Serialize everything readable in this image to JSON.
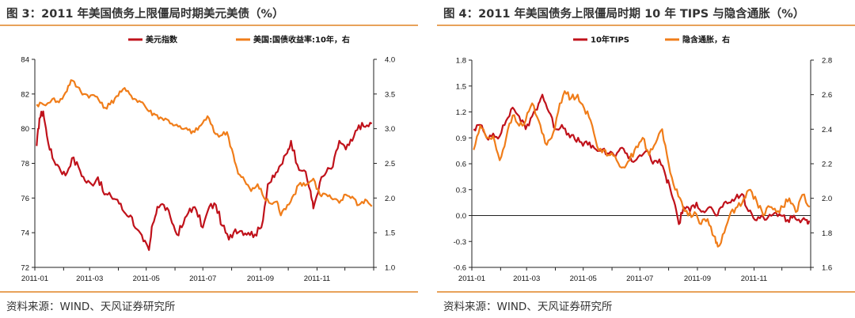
{
  "panels": [
    {
      "title": "图 3：2011 年美国债务上限僵局时期美元美债（%）",
      "source": "资料来源：WIND、天风证券研究所"
    },
    {
      "title": "图 4：2011 年美国债务上限僵局时期 10 年 TIPS 与隐含通胀（%）",
      "source": "资料来源：WIND、天风证券研究所"
    }
  ],
  "chart_data": [
    {
      "type": "line",
      "x_ticks": [
        "2011-01",
        "2011-03",
        "2011-05",
        "2011-07",
        "2011-09",
        "2011-11"
      ],
      "y_left": {
        "range": [
          72,
          84
        ],
        "ticks": [
          "72",
          "74",
          "76",
          "78",
          "80",
          "82",
          "84"
        ]
      },
      "y_right": {
        "range": [
          1.0,
          4.0
        ],
        "ticks": [
          "1.0",
          "1.5",
          "2.0",
          "2.5",
          "3.0",
          "3.5",
          "4.0"
        ]
      },
      "grid": false,
      "legend_position": "top",
      "colors": {
        "series1": "#c0121b",
        "series2": "#f07d1a"
      },
      "series": [
        {
          "name": "美元指数",
          "axis": "left",
          "points": [
            [
              "2011-01-03",
              79.0
            ],
            [
              "2011-01-06",
              80.6
            ],
            [
              "2011-01-10",
              81.0
            ],
            [
              "2011-01-14",
              79.6
            ],
            [
              "2011-01-20",
              78.3
            ],
            [
              "2011-01-27",
              77.8
            ],
            [
              "2011-02-03",
              77.3
            ],
            [
              "2011-02-10",
              78.3
            ],
            [
              "2011-02-17",
              77.8
            ],
            [
              "2011-02-24",
              77.0
            ],
            [
              "2011-03-03",
              76.8
            ],
            [
              "2011-03-10",
              77.2
            ],
            [
              "2011-03-17",
              76.2
            ],
            [
              "2011-03-24",
              76.1
            ],
            [
              "2011-03-31",
              75.9
            ],
            [
              "2011-04-07",
              75.2
            ],
            [
              "2011-04-14",
              75.0
            ],
            [
              "2011-04-21",
              74.2
            ],
            [
              "2011-04-28",
              73.5
            ],
            [
              "2011-05-04",
              73.0
            ],
            [
              "2011-05-08",
              74.5
            ],
            [
              "2011-05-13",
              75.5
            ],
            [
              "2011-05-20",
              75.6
            ],
            [
              "2011-05-27",
              74.9
            ],
            [
              "2011-06-03",
              73.9
            ],
            [
              "2011-06-10",
              74.5
            ],
            [
              "2011-06-17",
              75.4
            ],
            [
              "2011-06-24",
              75.3
            ],
            [
              "2011-07-01",
              74.3
            ],
            [
              "2011-07-08",
              75.5
            ],
            [
              "2011-07-15",
              75.6
            ],
            [
              "2011-07-22",
              74.4
            ],
            [
              "2011-07-29",
              73.6
            ],
            [
              "2011-08-05",
              74.2
            ],
            [
              "2011-08-12",
              74.1
            ],
            [
              "2011-08-19",
              74.0
            ],
            [
              "2011-08-26",
              73.9
            ],
            [
              "2011-09-02",
              74.3
            ],
            [
              "2011-09-09",
              76.8
            ],
            [
              "2011-09-16",
              77.2
            ],
            [
              "2011-09-23",
              77.9
            ],
            [
              "2011-09-30",
              78.6
            ],
            [
              "2011-10-04",
              79.3
            ],
            [
              "2011-10-11",
              77.9
            ],
            [
              "2011-10-18",
              77.6
            ],
            [
              "2011-10-25",
              76.4
            ],
            [
              "2011-10-28",
              75.4
            ],
            [
              "2011-11-04",
              76.9
            ],
            [
              "2011-11-11",
              77.5
            ],
            [
              "2011-11-18",
              77.8
            ],
            [
              "2011-11-25",
              79.3
            ],
            [
              "2011-12-02",
              78.8
            ],
            [
              "2011-12-09",
              79.3
            ],
            [
              "2011-12-16",
              80.2
            ],
            [
              "2011-12-23",
              80.1
            ],
            [
              "2011-12-30",
              80.3
            ]
          ]
        },
        {
          "name": "美国:国债收益率:10年，右",
          "axis": "right",
          "points": [
            [
              "2011-01-03",
              3.35
            ],
            [
              "2011-01-10",
              3.35
            ],
            [
              "2011-01-20",
              3.43
            ],
            [
              "2011-01-27",
              3.38
            ],
            [
              "2011-02-03",
              3.52
            ],
            [
              "2011-02-09",
              3.7
            ],
            [
              "2011-02-16",
              3.6
            ],
            [
              "2011-02-23",
              3.5
            ],
            [
              "2011-03-02",
              3.48
            ],
            [
              "2011-03-09",
              3.46
            ],
            [
              "2011-03-16",
              3.3
            ],
            [
              "2011-03-23",
              3.35
            ],
            [
              "2011-03-30",
              3.47
            ],
            [
              "2011-04-06",
              3.57
            ],
            [
              "2011-04-13",
              3.5
            ],
            [
              "2011-04-20",
              3.42
            ],
            [
              "2011-04-27",
              3.38
            ],
            [
              "2011-05-04",
              3.25
            ],
            [
              "2011-05-11",
              3.2
            ],
            [
              "2011-05-18",
              3.15
            ],
            [
              "2011-05-25",
              3.12
            ],
            [
              "2011-06-01",
              3.05
            ],
            [
              "2011-06-08",
              3.0
            ],
            [
              "2011-06-15",
              2.98
            ],
            [
              "2011-06-22",
              2.95
            ],
            [
              "2011-06-29",
              3.05
            ],
            [
              "2011-07-06",
              3.18
            ],
            [
              "2011-07-13",
              2.95
            ],
            [
              "2011-07-20",
              2.9
            ],
            [
              "2011-07-27",
              2.95
            ],
            [
              "2011-08-03",
              2.62
            ],
            [
              "2011-08-08",
              2.35
            ],
            [
              "2011-08-15",
              2.25
            ],
            [
              "2011-08-22",
              2.1
            ],
            [
              "2011-08-29",
              2.2
            ],
            [
              "2011-09-05",
              2.0
            ],
            [
              "2011-09-12",
              1.92
            ],
            [
              "2011-09-19",
              1.95
            ],
            [
              "2011-09-23",
              1.75
            ],
            [
              "2011-09-30",
              1.9
            ],
            [
              "2011-10-07",
              2.05
            ],
            [
              "2011-10-14",
              2.22
            ],
            [
              "2011-10-21",
              2.2
            ],
            [
              "2011-10-28",
              2.28
            ],
            [
              "2011-11-04",
              2.05
            ],
            [
              "2011-11-11",
              2.05
            ],
            [
              "2011-11-18",
              1.98
            ],
            [
              "2011-11-25",
              1.93
            ],
            [
              "2011-12-02",
              2.05
            ],
            [
              "2011-12-09",
              2.02
            ],
            [
              "2011-12-16",
              1.9
            ],
            [
              "2011-12-23",
              1.98
            ],
            [
              "2011-12-30",
              1.88
            ]
          ]
        }
      ]
    },
    {
      "type": "line",
      "x_ticks": [
        "2011-01",
        "2011-03",
        "2011-05",
        "2011-07",
        "2011-09",
        "2011-11"
      ],
      "y_left": {
        "range": [
          -0.6,
          1.8
        ],
        "ticks": [
          "-0.6",
          "-0.3",
          "0.0",
          "0.3",
          "0.6",
          "0.9",
          "1.2",
          "1.5",
          "1.8"
        ]
      },
      "y_right": {
        "range": [
          1.6,
          2.8
        ],
        "ticks": [
          "1.6",
          "1.8",
          "2.0",
          "2.2",
          "2.4",
          "2.6",
          "2.8"
        ]
      },
      "zero_line": true,
      "grid": false,
      "legend_position": "top",
      "colors": {
        "series1": "#c0121b",
        "series2": "#f07d1a"
      },
      "series": [
        {
          "name": "10年TIPS",
          "axis": "left",
          "points": [
            [
              "2011-01-03",
              1.0
            ],
            [
              "2011-01-10",
              1.05
            ],
            [
              "2011-01-17",
              0.9
            ],
            [
              "2011-01-24",
              0.95
            ],
            [
              "2011-01-31",
              0.92
            ],
            [
              "2011-02-07",
              1.1
            ],
            [
              "2011-02-14",
              1.25
            ],
            [
              "2011-02-21",
              1.15
            ],
            [
              "2011-02-28",
              1.0
            ],
            [
              "2011-03-07",
              1.15
            ],
            [
              "2011-03-14",
              1.3
            ],
            [
              "2011-03-18",
              1.4
            ],
            [
              "2011-03-25",
              1.2
            ],
            [
              "2011-04-01",
              1.0
            ],
            [
              "2011-04-08",
              1.05
            ],
            [
              "2011-04-15",
              0.95
            ],
            [
              "2011-04-22",
              0.88
            ],
            [
              "2011-04-29",
              0.85
            ],
            [
              "2011-05-06",
              0.82
            ],
            [
              "2011-05-13",
              0.78
            ],
            [
              "2011-05-20",
              0.75
            ],
            [
              "2011-05-27",
              0.72
            ],
            [
              "2011-06-03",
              0.7
            ],
            [
              "2011-06-10",
              0.78
            ],
            [
              "2011-06-17",
              0.72
            ],
            [
              "2011-06-24",
              0.62
            ],
            [
              "2011-07-01",
              0.7
            ],
            [
              "2011-07-08",
              0.75
            ],
            [
              "2011-07-15",
              0.6
            ],
            [
              "2011-07-22",
              0.65
            ],
            [
              "2011-07-29",
              0.45
            ],
            [
              "2011-08-03",
              0.3
            ],
            [
              "2011-08-08",
              0.12
            ],
            [
              "2011-08-12",
              -0.1
            ],
            [
              "2011-08-17",
              0.1
            ],
            [
              "2011-08-24",
              0.05
            ],
            [
              "2011-08-31",
              0.15
            ],
            [
              "2011-09-07",
              0.05
            ],
            [
              "2011-09-14",
              0.1
            ],
            [
              "2011-09-21",
              0.0
            ],
            [
              "2011-09-28",
              0.1
            ],
            [
              "2011-10-05",
              0.15
            ],
            [
              "2011-10-12",
              0.2
            ],
            [
              "2011-10-19",
              0.25
            ],
            [
              "2011-10-26",
              0.05
            ],
            [
              "2011-11-02",
              -0.05
            ],
            [
              "2011-11-09",
              0.0
            ],
            [
              "2011-11-16",
              -0.02
            ],
            [
              "2011-11-23",
              0.03
            ],
            [
              "2011-11-30",
              0.0
            ],
            [
              "2011-12-07",
              -0.05
            ],
            [
              "2011-12-14",
              0.0
            ],
            [
              "2011-12-21",
              -0.08
            ],
            [
              "2011-12-28",
              -0.05
            ],
            [
              "2011-12-31",
              -0.07
            ]
          ]
        },
        {
          "name": "隐含通胀，右",
          "axis": "right",
          "points": [
            [
              "2011-01-03",
              2.28
            ],
            [
              "2011-01-10",
              2.42
            ],
            [
              "2011-01-17",
              2.35
            ],
            [
              "2011-01-24",
              2.36
            ],
            [
              "2011-01-31",
              2.22
            ],
            [
              "2011-02-07",
              2.35
            ],
            [
              "2011-02-14",
              2.48
            ],
            [
              "2011-02-21",
              2.42
            ],
            [
              "2011-02-28",
              2.45
            ],
            [
              "2011-03-07",
              2.55
            ],
            [
              "2011-03-14",
              2.45
            ],
            [
              "2011-03-21",
              2.32
            ],
            [
              "2011-03-28",
              2.35
            ],
            [
              "2011-04-04",
              2.5
            ],
            [
              "2011-04-11",
              2.62
            ],
            [
              "2011-04-18",
              2.58
            ],
            [
              "2011-04-25",
              2.6
            ],
            [
              "2011-05-02",
              2.52
            ],
            [
              "2011-05-09",
              2.45
            ],
            [
              "2011-05-16",
              2.3
            ],
            [
              "2011-05-23",
              2.28
            ],
            [
              "2011-05-30",
              2.25
            ],
            [
              "2011-06-06",
              2.22
            ],
            [
              "2011-06-13",
              2.18
            ],
            [
              "2011-06-20",
              2.22
            ],
            [
              "2011-06-27",
              2.3
            ],
            [
              "2011-07-04",
              2.35
            ],
            [
              "2011-07-11",
              2.25
            ],
            [
              "2011-07-18",
              2.32
            ],
            [
              "2011-07-25",
              2.4
            ],
            [
              "2011-08-01",
              2.2
            ],
            [
              "2011-08-08",
              2.05
            ],
            [
              "2011-08-15",
              1.98
            ],
            [
              "2011-08-22",
              1.9
            ],
            [
              "2011-08-29",
              1.92
            ],
            [
              "2011-09-05",
              1.85
            ],
            [
              "2011-09-12",
              1.88
            ],
            [
              "2011-09-19",
              1.78
            ],
            [
              "2011-09-23",
              1.72
            ],
            [
              "2011-09-30",
              1.8
            ],
            [
              "2011-10-07",
              1.92
            ],
            [
              "2011-10-14",
              1.95
            ],
            [
              "2011-10-21",
              2.0
            ],
            [
              "2011-10-28",
              2.05
            ],
            [
              "2011-11-04",
              1.98
            ],
            [
              "2011-11-11",
              1.9
            ],
            [
              "2011-11-18",
              1.95
            ],
            [
              "2011-11-25",
              1.92
            ],
            [
              "2011-12-02",
              1.95
            ],
            [
              "2011-12-09",
              2.0
            ],
            [
              "2011-12-16",
              1.92
            ],
            [
              "2011-12-23",
              2.02
            ],
            [
              "2011-12-31",
              1.95
            ]
          ]
        }
      ]
    }
  ]
}
